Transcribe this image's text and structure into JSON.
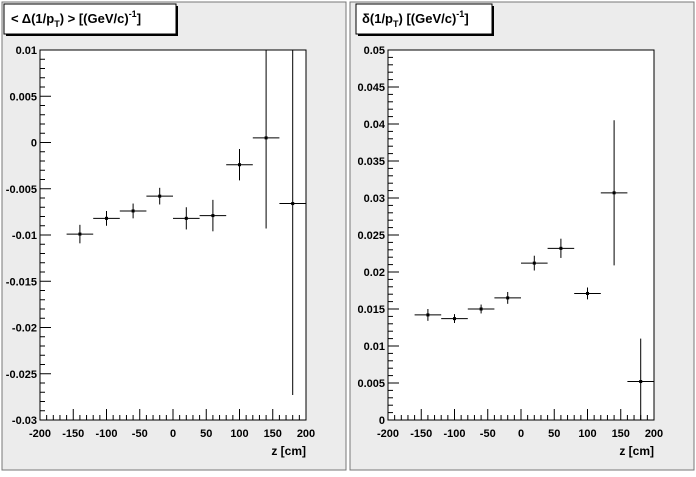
{
  "chart_data": [
    {
      "type": "scatter",
      "title_main": "< Δ(1/p",
      "title_sub": "T",
      "title_rest": ") >  [(GeV/c)",
      "title_sup": "-1",
      "title_end": "]",
      "xlabel": "z  [cm]",
      "xlim": [
        -200,
        200
      ],
      "ylim": [
        -0.03,
        0.01
      ],
      "xticks": [
        -200,
        -150,
        -100,
        -50,
        0,
        50,
        100,
        150,
        200
      ],
      "yticks": [
        -0.03,
        -0.025,
        -0.02,
        -0.015,
        -0.01,
        -0.005,
        0,
        0.005,
        0.01
      ],
      "xtick_labels": [
        "-200",
        "-150",
        "-100",
        "-50",
        "0",
        "50",
        "100",
        "150",
        "200"
      ],
      "ytick_labels": [
        "-0.03",
        "-0.025",
        "-0.02",
        "-0.015",
        "-0.01",
        "-0.005",
        "0",
        "0.005",
        "0.01"
      ],
      "points": [
        {
          "x": -140,
          "xerr": 20,
          "y": -0.0099,
          "yerr": 0.001
        },
        {
          "x": -100,
          "xerr": 20,
          "y": -0.0082,
          "yerr": 0.0008
        },
        {
          "x": -60,
          "xerr": 20,
          "y": -0.0074,
          "yerr": 0.0008
        },
        {
          "x": -20,
          "xerr": 20,
          "y": -0.0058,
          "yerr": 0.0009
        },
        {
          "x": 20,
          "xerr": 20,
          "y": -0.0082,
          "yerr": 0.0012
        },
        {
          "x": 60,
          "xerr": 20,
          "y": -0.0079,
          "yerr": 0.0017
        },
        {
          "x": 100,
          "xerr": 20,
          "y": -0.0024,
          "yerr": 0.0017
        },
        {
          "x": 140,
          "xerr": 20,
          "y": 0.0005,
          "yerr": 0.0098
        },
        {
          "x": 180,
          "xerr": 20,
          "y": -0.0066,
          "yerr": 0.0207
        }
      ]
    },
    {
      "type": "scatter",
      "title_main": "δ(1/p",
      "title_sub": "T",
      "title_rest": ")  [(GeV/c)",
      "title_sup": "-1",
      "title_end": "]",
      "xlabel": "z  [cm]",
      "xlim": [
        -200,
        200
      ],
      "ylim": [
        0,
        0.05
      ],
      "xticks": [
        -200,
        -150,
        -100,
        -50,
        0,
        50,
        100,
        150,
        200
      ],
      "yticks": [
        0,
        0.005,
        0.01,
        0.015,
        0.02,
        0.025,
        0.03,
        0.035,
        0.04,
        0.045,
        0.05
      ],
      "xtick_labels": [
        "-200",
        "-150",
        "-100",
        "-50",
        "0",
        "50",
        "100",
        "150",
        "200"
      ],
      "ytick_labels": [
        "0",
        "0.005",
        "0.01",
        "0.015",
        "0.02",
        "0.025",
        "0.03",
        "0.035",
        "0.04",
        "0.045",
        "0.05"
      ],
      "points": [
        {
          "x": -140,
          "xerr": 20,
          "y": 0.0142,
          "yerr": 0.0008
        },
        {
          "x": -100,
          "xerr": 20,
          "y": 0.0137,
          "yerr": 0.0006
        },
        {
          "x": -60,
          "xerr": 20,
          "y": 0.015,
          "yerr": 0.0006
        },
        {
          "x": -20,
          "xerr": 20,
          "y": 0.0165,
          "yerr": 0.0008
        },
        {
          "x": 20,
          "xerr": 20,
          "y": 0.0212,
          "yerr": 0.001
        },
        {
          "x": 60,
          "xerr": 20,
          "y": 0.0232,
          "yerr": 0.0013
        },
        {
          "x": 100,
          "xerr": 20,
          "y": 0.0171,
          "yerr": 0.0008
        },
        {
          "x": 140,
          "xerr": 20,
          "y": 0.0307,
          "yerr": 0.0098
        },
        {
          "x": 180,
          "xerr": 20,
          "y": 0.0052,
          "yerr": 0.0058
        }
      ]
    }
  ]
}
